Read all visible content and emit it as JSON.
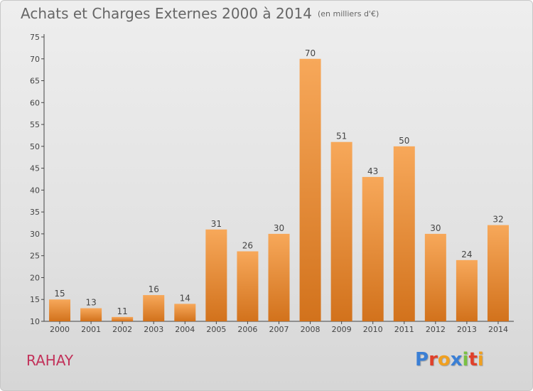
{
  "header": {
    "title": "Achats et Charges Externes 2000 à 2014",
    "unit": "(en milliers d'€)"
  },
  "footer": {
    "place": "RAHAY",
    "logo": "Proxiti",
    "logo_colors": [
      "#3a7fd5",
      "#e0402a",
      "#f0a020",
      "#3a7fd5",
      "#7ac143",
      "#e0402a",
      "#f0a020"
    ]
  },
  "colors": {
    "bar_light": "#f7a85a",
    "bar_dark": "#d2721c",
    "axis": "#444444",
    "gridline": "#ffffff"
  },
  "chart_data": {
    "type": "bar",
    "title": "Achats et Charges Externes 2000 à 2014",
    "categories": [
      "2000",
      "2001",
      "2002",
      "2003",
      "2004",
      "2005",
      "2006",
      "2007",
      "2008",
      "2009",
      "2010",
      "2011",
      "2012",
      "2013",
      "2014"
    ],
    "values": [
      15,
      13,
      11,
      16,
      14,
      31,
      26,
      30,
      70,
      51,
      43,
      50,
      30,
      24,
      32
    ],
    "ylim": [
      10,
      75
    ],
    "yticks": [
      "10",
      "15",
      "20",
      "25",
      "30",
      "35",
      "40",
      "45",
      "50",
      "55",
      "60",
      "65",
      "70",
      "75"
    ],
    "grid": false,
    "legend": "none"
  }
}
